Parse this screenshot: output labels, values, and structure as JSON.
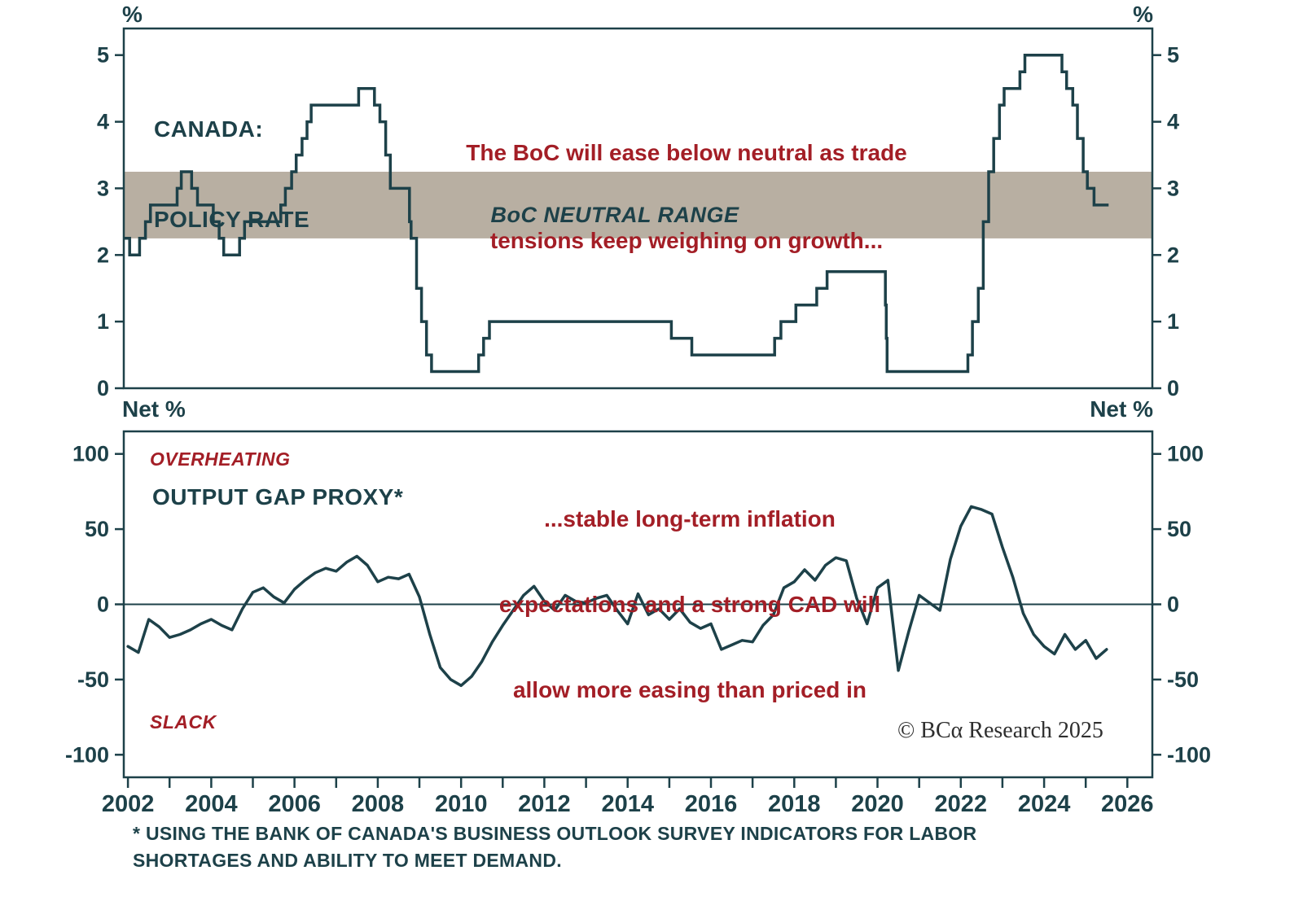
{
  "colors": {
    "line": "#1d4149",
    "text": "#1d4149",
    "annotation": "#a31e26",
    "band": "#b8afa2",
    "watermark": "#2e2e2e"
  },
  "chart_data": [
    {
      "type": "step",
      "name": "canada-policy-rate",
      "title_lines": [
        "CANADA:",
        "POLICY RATE"
      ],
      "annotation_lines": [
        "The BoC will ease below neutral as trade",
        "tensions keep weighing on growth..."
      ],
      "unit_left": "%",
      "unit_right": "%",
      "band": {
        "label": "BoC NEUTRAL RANGE",
        "from": 2.25,
        "to": 3.25
      },
      "ylim": [
        0,
        5.4
      ],
      "yticks": [
        0,
        1,
        2,
        3,
        4,
        5
      ],
      "xlim": [
        2001.9,
        2026.6
      ],
      "x_end": 2025.55,
      "steps": [
        [
          2001.9,
          2.25
        ],
        [
          2002.04,
          2.0
        ],
        [
          2002.28,
          2.25
        ],
        [
          2002.42,
          2.5
        ],
        [
          2002.54,
          2.75
        ],
        [
          2003.18,
          3.0
        ],
        [
          2003.28,
          3.25
        ],
        [
          2003.53,
          3.0
        ],
        [
          2003.67,
          2.75
        ],
        [
          2004.05,
          2.5
        ],
        [
          2004.19,
          2.25
        ],
        [
          2004.3,
          2.0
        ],
        [
          2004.68,
          2.25
        ],
        [
          2004.8,
          2.5
        ],
        [
          2005.67,
          2.75
        ],
        [
          2005.78,
          3.0
        ],
        [
          2005.93,
          3.25
        ],
        [
          2006.04,
          3.5
        ],
        [
          2006.18,
          3.75
        ],
        [
          2006.3,
          4.0
        ],
        [
          2006.4,
          4.25
        ],
        [
          2007.54,
          4.5
        ],
        [
          2007.92,
          4.25
        ],
        [
          2008.05,
          4.0
        ],
        [
          2008.19,
          3.5
        ],
        [
          2008.3,
          3.0
        ],
        [
          2008.76,
          2.5
        ],
        [
          2008.8,
          2.25
        ],
        [
          2008.93,
          1.5
        ],
        [
          2009.05,
          1.0
        ],
        [
          2009.17,
          0.5
        ],
        [
          2009.29,
          0.25
        ],
        [
          2010.42,
          0.5
        ],
        [
          2010.54,
          0.75
        ],
        [
          2010.68,
          1.0
        ],
        [
          2015.05,
          0.75
        ],
        [
          2015.54,
          0.5
        ],
        [
          2017.53,
          0.75
        ],
        [
          2017.68,
          1.0
        ],
        [
          2018.04,
          1.25
        ],
        [
          2018.54,
          1.5
        ],
        [
          2018.79,
          1.75
        ],
        [
          2020.19,
          1.25
        ],
        [
          2020.21,
          0.75
        ],
        [
          2020.23,
          0.25
        ],
        [
          2022.17,
          0.5
        ],
        [
          2022.28,
          1.0
        ],
        [
          2022.42,
          1.5
        ],
        [
          2022.54,
          2.5
        ],
        [
          2022.67,
          3.25
        ],
        [
          2022.79,
          3.75
        ],
        [
          2022.93,
          4.25
        ],
        [
          2023.04,
          4.5
        ],
        [
          2023.42,
          4.75
        ],
        [
          2023.54,
          5.0
        ],
        [
          2024.43,
          4.75
        ],
        [
          2024.54,
          4.5
        ],
        [
          2024.69,
          4.25
        ],
        [
          2024.8,
          3.75
        ],
        [
          2024.94,
          3.25
        ],
        [
          2025.04,
          3.0
        ],
        [
          2025.2,
          2.75
        ]
      ]
    },
    {
      "type": "line",
      "name": "output-gap-proxy",
      "title": "OUTPUT GAP PROXY*",
      "label_top": "OVERHEATING",
      "label_bottom": "SLACK",
      "annotation_lines": [
        "...stable long-term inflation",
        "expectations and a strong CAD will",
        "allow more easing than priced in"
      ],
      "unit_left": "Net %",
      "unit_right": "Net %",
      "ylim": [
        -115,
        115
      ],
      "yticks": [
        100,
        50,
        0,
        -50,
        -100
      ],
      "xlim": [
        2001.9,
        2026.6
      ],
      "zero_line": true,
      "xticks": {
        "start": 2002,
        "end": 2026,
        "label_years": [
          2002,
          2004,
          2006,
          2008,
          2010,
          2012,
          2014,
          2016,
          2018,
          2020,
          2022,
          2024,
          2026
        ]
      },
      "points": [
        [
          2002.0,
          -28
        ],
        [
          2002.25,
          -32
        ],
        [
          2002.5,
          -10
        ],
        [
          2002.75,
          -15
        ],
        [
          2003.0,
          -22
        ],
        [
          2003.25,
          -20
        ],
        [
          2003.5,
          -17
        ],
        [
          2003.75,
          -13
        ],
        [
          2004.0,
          -10
        ],
        [
          2004.25,
          -14
        ],
        [
          2004.5,
          -17
        ],
        [
          2004.75,
          -3
        ],
        [
          2005.0,
          8
        ],
        [
          2005.25,
          11
        ],
        [
          2005.5,
          5
        ],
        [
          2005.75,
          1
        ],
        [
          2006.0,
          10
        ],
        [
          2006.25,
          16
        ],
        [
          2006.5,
          21
        ],
        [
          2006.75,
          24
        ],
        [
          2007.0,
          22
        ],
        [
          2007.25,
          28
        ],
        [
          2007.5,
          32
        ],
        [
          2007.75,
          26
        ],
        [
          2008.0,
          15
        ],
        [
          2008.25,
          18
        ],
        [
          2008.5,
          17
        ],
        [
          2008.75,
          20
        ],
        [
          2009.0,
          5
        ],
        [
          2009.25,
          -20
        ],
        [
          2009.5,
          -42
        ],
        [
          2009.75,
          -50
        ],
        [
          2010.0,
          -54
        ],
        [
          2010.25,
          -48
        ],
        [
          2010.5,
          -38
        ],
        [
          2010.75,
          -25
        ],
        [
          2011.0,
          -14
        ],
        [
          2011.25,
          -4
        ],
        [
          2011.5,
          6
        ],
        [
          2011.75,
          12
        ],
        [
          2012.0,
          2
        ],
        [
          2012.25,
          -4
        ],
        [
          2012.5,
          6
        ],
        [
          2012.75,
          2
        ],
        [
          2013.0,
          1
        ],
        [
          2013.25,
          4
        ],
        [
          2013.5,
          6
        ],
        [
          2013.75,
          -4
        ],
        [
          2014.0,
          -13
        ],
        [
          2014.25,
          7
        ],
        [
          2014.5,
          -7
        ],
        [
          2014.75,
          -3
        ],
        [
          2015.0,
          -10
        ],
        [
          2015.25,
          -3
        ],
        [
          2015.5,
          -12
        ],
        [
          2015.75,
          -16
        ],
        [
          2016.0,
          -13
        ],
        [
          2016.25,
          -30
        ],
        [
          2016.5,
          -27
        ],
        [
          2016.75,
          -24
        ],
        [
          2017.0,
          -25
        ],
        [
          2017.25,
          -14
        ],
        [
          2017.5,
          -7
        ],
        [
          2017.75,
          11
        ],
        [
          2018.0,
          15
        ],
        [
          2018.25,
          23
        ],
        [
          2018.5,
          16
        ],
        [
          2018.75,
          26
        ],
        [
          2019.0,
          31
        ],
        [
          2019.25,
          29
        ],
        [
          2019.5,
          4
        ],
        [
          2019.75,
          -13
        ],
        [
          2020.0,
          11
        ],
        [
          2020.25,
          16
        ],
        [
          2020.5,
          -44
        ],
        [
          2020.75,
          -18
        ],
        [
          2021.0,
          6
        ],
        [
          2021.25,
          1
        ],
        [
          2021.5,
          -4
        ],
        [
          2021.75,
          30
        ],
        [
          2022.0,
          52
        ],
        [
          2022.25,
          65
        ],
        [
          2022.5,
          63
        ],
        [
          2022.75,
          60
        ],
        [
          2023.0,
          38
        ],
        [
          2023.25,
          18
        ],
        [
          2023.5,
          -6
        ],
        [
          2023.75,
          -20
        ],
        [
          2024.0,
          -28
        ],
        [
          2024.25,
          -33
        ],
        [
          2024.5,
          -20
        ],
        [
          2024.75,
          -30
        ],
        [
          2025.0,
          -24
        ],
        [
          2025.25,
          -36
        ],
        [
          2025.5,
          -30
        ]
      ]
    }
  ],
  "watermark": "© BCα Research 2025",
  "footnote_lines": [
    "* USING THE BANK OF CANADA'S BUSINESS OUTLOOK SURVEY INDICATORS FOR LABOR",
    "SHORTAGES AND ABILITY TO MEET DEMAND."
  ]
}
